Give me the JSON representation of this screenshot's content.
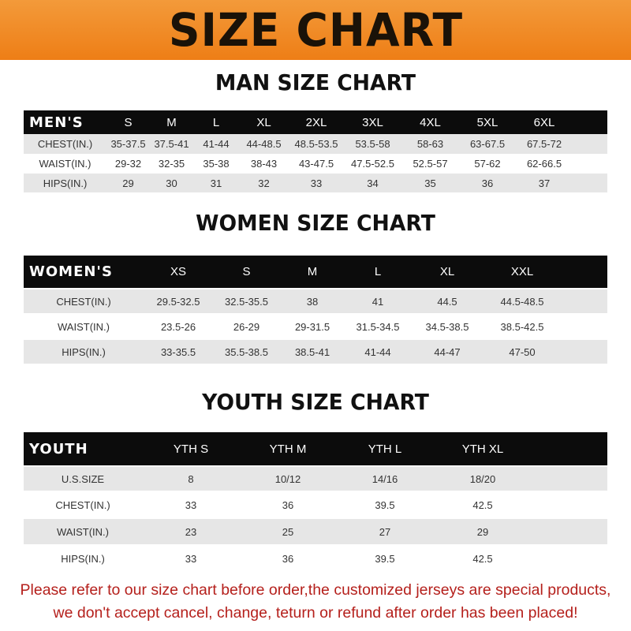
{
  "title": "SIZE CHART",
  "men": {
    "heading": "MAN SIZE CHART",
    "header": [
      "MEN'S",
      "S",
      "M",
      "L",
      "XL",
      "2XL",
      "3XL",
      "4XL",
      "5XL",
      "6XL"
    ],
    "rows": [
      [
        "CHEST(IN.)",
        "35-37.5",
        "37.5-41",
        "41-44",
        "44-48.5",
        "48.5-53.5",
        "53.5-58",
        "58-63",
        "63-67.5",
        "67.5-72"
      ],
      [
        "WAIST(IN.)",
        "29-32",
        "32-35",
        "35-38",
        "38-43",
        "43-47.5",
        "47.5-52.5",
        "52.5-57",
        "57-62",
        "62-66.5"
      ],
      [
        "HIPS(IN.)",
        "29",
        "30",
        "31",
        "32",
        "33",
        "34",
        "35",
        "36",
        "37"
      ]
    ]
  },
  "women": {
    "heading": "WOMEN SIZE CHART",
    "header": [
      "WOMEN'S",
      "XS",
      "S",
      "M",
      "L",
      "XL",
      "XXL"
    ],
    "rows": [
      [
        "CHEST(IN.)",
        "29.5-32.5",
        "32.5-35.5",
        "38",
        "41",
        "44.5",
        "44.5-48.5"
      ],
      [
        "WAIST(IN.)",
        "23.5-26",
        "26-29",
        "29-31.5",
        "31.5-34.5",
        "34.5-38.5",
        "38.5-42.5"
      ],
      [
        "HIPS(IN.)",
        "33-35.5",
        "35.5-38.5",
        "38.5-41",
        "41-44",
        "44-47",
        "47-50"
      ]
    ]
  },
  "youth": {
    "heading": "YOUTH SIZE CHART",
    "header": [
      "YOUTH",
      "YTH S",
      "YTH M",
      "YTH L",
      "YTH XL"
    ],
    "rows": [
      [
        "U.S.SIZE",
        "8",
        "10/12",
        "14/16",
        "18/20"
      ],
      [
        "CHEST(IN.)",
        "33",
        "36",
        "39.5",
        "42.5"
      ],
      [
        "WAIST(IN.)",
        "23",
        "25",
        "27",
        "29"
      ],
      [
        "HIPS(IN.)",
        "33",
        "36",
        "39.5",
        "42.5"
      ]
    ]
  },
  "footer": {
    "line1": "Please refer to our size chart before order,the customized jerseys are special products,",
    "line2": "we don't accept cancel, change, teturn or refund after order has been placed!"
  }
}
